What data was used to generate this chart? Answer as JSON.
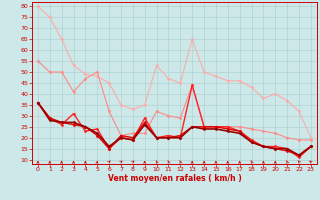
{
  "bg_color": "#cce8e8",
  "grid_color": "#aacccc",
  "xlabel": "Vent moyen/en rafales ( km/h )",
  "xlabel_color": "#cc0000",
  "xticks": [
    0,
    1,
    2,
    3,
    4,
    5,
    6,
    7,
    8,
    9,
    10,
    11,
    12,
    13,
    14,
    15,
    16,
    17,
    18,
    19,
    20,
    21,
    22,
    23
  ],
  "yticks": [
    10,
    15,
    20,
    25,
    30,
    35,
    40,
    45,
    50,
    55,
    60,
    65,
    70,
    75,
    80
  ],
  "ylim": [
    8,
    82
  ],
  "xlim": [
    -0.5,
    23.5
  ],
  "series": [
    {
      "color": "#ffaaaa",
      "lw": 0.8,
      "marker": "D",
      "ms": 1.5,
      "data_y": [
        80,
        75,
        65,
        53,
        49,
        48,
        45,
        35,
        33,
        35,
        53,
        47,
        45,
        65,
        50,
        48,
        46,
        46,
        43,
        38,
        40,
        37,
        32,
        20
      ]
    },
    {
      "color": "#ff8888",
      "lw": 0.8,
      "marker": "D",
      "ms": 1.5,
      "data_y": [
        55,
        50,
        50,
        41,
        47,
        50,
        32,
        21,
        22,
        22,
        32,
        30,
        29,
        44,
        25,
        25,
        25,
        25,
        24,
        23,
        22,
        20,
        19,
        19
      ]
    },
    {
      "color": "#ff2222",
      "lw": 1.0,
      "marker": "D",
      "ms": 1.5,
      "data_y": [
        36,
        29,
        26,
        31,
        23,
        24,
        15,
        20,
        19,
        29,
        20,
        21,
        20,
        44,
        25,
        25,
        25,
        23,
        19,
        16,
        16,
        15,
        11,
        16
      ]
    },
    {
      "color": "#dd0000",
      "lw": 1.0,
      "marker": "D",
      "ms": 1.5,
      "data_y": [
        36,
        29,
        27,
        26,
        25,
        21,
        15,
        21,
        20,
        27,
        20,
        20,
        21,
        25,
        25,
        25,
        24,
        23,
        18,
        16,
        15,
        14,
        12,
        16
      ]
    },
    {
      "color": "#990000",
      "lw": 1.2,
      "marker": "D",
      "ms": 1.5,
      "data_y": [
        36,
        28,
        27,
        27,
        25,
        22,
        16,
        20,
        19,
        26,
        20,
        20,
        20,
        25,
        24,
        24,
        23,
        22,
        18,
        16,
        15,
        15,
        12,
        16
      ]
    }
  ],
  "wind_angles": [
    90,
    90,
    90,
    90,
    90,
    85,
    65,
    60,
    60,
    90,
    100,
    100,
    100,
    90,
    90,
    90,
    90,
    90,
    100,
    90,
    90,
    100,
    110,
    120
  ],
  "arrow_color": "#cc0000",
  "tick_fontsize": 4.5,
  "xlabel_fontsize": 5.5
}
